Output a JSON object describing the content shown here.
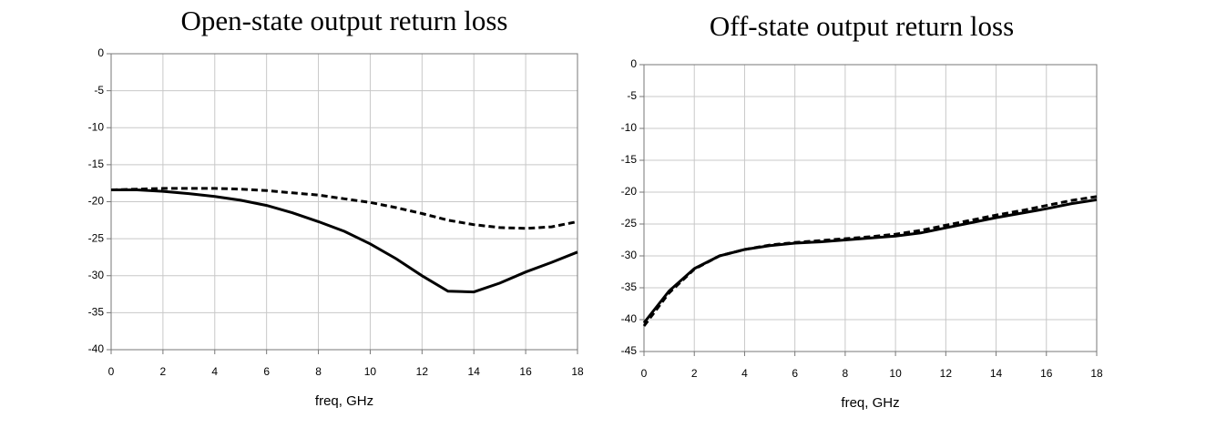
{
  "chart_data": [
    {
      "type": "line",
      "title": "Open-state output return loss",
      "xlabel": "freq, GHz",
      "x": [
        0,
        1,
        2,
        3,
        4,
        5,
        6,
        7,
        8,
        9,
        10,
        11,
        12,
        13,
        14,
        15,
        16,
        17,
        18
      ],
      "xlim": [
        0,
        18
      ],
      "xticks": [
        0,
        2,
        4,
        6,
        8,
        10,
        12,
        14,
        16,
        18
      ],
      "ylim": [
        -40,
        0
      ],
      "yticks": [
        0,
        -5,
        -10,
        -15,
        -20,
        -25,
        -30,
        -35,
        -40
      ],
      "grid": true,
      "series": [
        {
          "color": "#000000",
          "dash": false,
          "values": [
            -18.4,
            -18.4,
            -18.6,
            -18.9,
            -19.3,
            -19.8,
            -20.5,
            -21.5,
            -22.7,
            -24.0,
            -25.7,
            -27.7,
            -30.0,
            -32.1,
            -32.2,
            -31.0,
            -29.5,
            -28.2,
            -26.8
          ]
        },
        {
          "color": "#000000",
          "dash": true,
          "values": [
            -18.4,
            -18.3,
            -18.2,
            -18.2,
            -18.2,
            -18.3,
            -18.5,
            -18.8,
            -19.1,
            -19.6,
            -20.1,
            -20.8,
            -21.6,
            -22.5,
            -23.1,
            -23.5,
            -23.6,
            -23.4,
            -22.7
          ]
        }
      ]
    },
    {
      "type": "line",
      "title": "Off-state output return loss",
      "xlabel": "freq, GHz",
      "x": [
        0,
        1,
        2,
        3,
        4,
        5,
        6,
        7,
        8,
        9,
        10,
        11,
        12,
        13,
        14,
        15,
        16,
        17,
        18
      ],
      "xlim": [
        0,
        18
      ],
      "xticks": [
        0,
        2,
        4,
        6,
        8,
        10,
        12,
        14,
        16,
        18
      ],
      "ylim": [
        -45,
        0
      ],
      "yticks": [
        0,
        -5,
        -10,
        -15,
        -20,
        -25,
        -30,
        -35,
        -40,
        -45
      ],
      "grid": true,
      "series": [
        {
          "color": "#000000",
          "dash": false,
          "values": [
            -40.5,
            -35.5,
            -32.0,
            -30.0,
            -29.0,
            -28.4,
            -28.0,
            -27.8,
            -27.5,
            -27.2,
            -26.9,
            -26.4,
            -25.6,
            -24.8,
            -24.0,
            -23.3,
            -22.6,
            -21.8,
            -21.2
          ]
        },
        {
          "color": "#000000",
          "dash": true,
          "values": [
            -41.0,
            -35.8,
            -32.1,
            -30.0,
            -29.0,
            -28.3,
            -27.9,
            -27.6,
            -27.3,
            -27.0,
            -26.6,
            -26.0,
            -25.2,
            -24.4,
            -23.6,
            -22.9,
            -22.1,
            -21.3,
            -20.7
          ]
        }
      ]
    }
  ]
}
